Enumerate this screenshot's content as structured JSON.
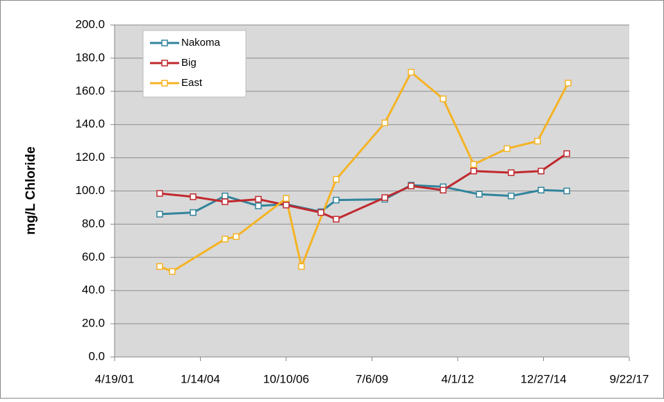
{
  "chart_data": {
    "type": "line",
    "y_label": "mg/L Chloride",
    "xlim": [
      37000,
      43000
    ],
    "xticks": [
      {
        "value": 37000,
        "label": "4/19/01"
      },
      {
        "value": 38000,
        "label": "1/14/04"
      },
      {
        "value": 39000,
        "label": "10/10/06"
      },
      {
        "value": 40000,
        "label": "7/6/09"
      },
      {
        "value": 41000,
        "label": "4/1/12"
      },
      {
        "value": 42000,
        "label": "12/27/14"
      },
      {
        "value": 43000,
        "label": "9/22/17"
      }
    ],
    "ylim": [
      0,
      200
    ],
    "yticks": [
      {
        "value": 0,
        "label": "0.0"
      },
      {
        "value": 20,
        "label": "20.0"
      },
      {
        "value": 40,
        "label": "40.0"
      },
      {
        "value": 60,
        "label": "60.0"
      },
      {
        "value": 80,
        "label": "80.0"
      },
      {
        "value": 100,
        "label": "100.0"
      },
      {
        "value": 120,
        "label": "120.0"
      },
      {
        "value": 140,
        "label": "140.0"
      },
      {
        "value": 160,
        "label": "160.0"
      },
      {
        "value": 180,
        "label": "180.0"
      },
      {
        "value": 200,
        "label": "200.0"
      }
    ],
    "grid": true,
    "legend": "upper-left",
    "series": [
      {
        "name": "Nakoma",
        "color": "#31849b",
        "x": [
          37526,
          37915,
          38287,
          38676,
          39000,
          39405,
          39583,
          40150,
          40457,
          40830,
          41251,
          41623,
          41972,
          42271
        ],
        "values": [
          86,
          87,
          97,
          91,
          92,
          87.5,
          94.5,
          95,
          103.5,
          102.5,
          98,
          97,
          100.5,
          100
        ]
      },
      {
        "name": "Big",
        "color": "#c0282d",
        "x": [
          37526,
          37915,
          38287,
          38676,
          39000,
          39405,
          39583,
          40150,
          40457,
          40830,
          41186,
          41623,
          41972,
          42271
        ],
        "values": [
          98.5,
          96.5,
          93.5,
          95,
          91.5,
          87,
          83,
          96,
          103,
          100.5,
          112,
          111,
          112,
          122.5
        ]
      },
      {
        "name": "East",
        "color": "#f5b323",
        "x": [
          37526,
          37672,
          38287,
          38417,
          39000,
          39178,
          39583,
          40150,
          40457,
          40830,
          41186,
          41575,
          41931,
          42287
        ],
        "values": [
          54.5,
          51.5,
          71,
          72.5,
          95.5,
          54.5,
          107,
          141,
          171.5,
          155.5,
          116,
          125.5,
          130,
          165
        ]
      }
    ]
  }
}
